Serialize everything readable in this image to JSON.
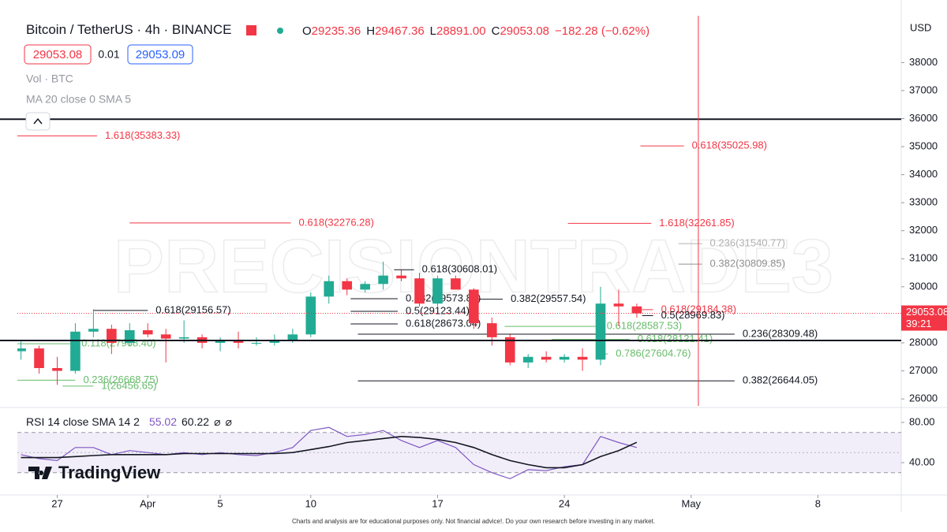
{
  "chart_data": [
    {
      "type": "candlestick",
      "title": "Bitcoin / TetherUS · 4h · BINANCE",
      "legend_values": [
        {
          "prefix": "O",
          "value": "29235.36"
        },
        {
          "prefix": "H",
          "value": "29467.36"
        },
        {
          "prefix": "L",
          "value": "28891.00"
        },
        {
          "prefix": "C",
          "value": "29053.08"
        }
      ],
      "change": "−182.28 (−0.62%)",
      "bid": "29053.08",
      "spread": "0.01",
      "ask": "29053.09",
      "indicators": [
        "Vol · BTC",
        "MA 20 close 0 SMA 5"
      ],
      "watermark": "PRECISIONTRADE3",
      "axis_unit": "USD",
      "up_color": "#22ab94",
      "down_color": "#f23645",
      "x": [
        -2,
        -1,
        0,
        1,
        2,
        3,
        4,
        5,
        6,
        7,
        8,
        9,
        10,
        11,
        12,
        13,
        14,
        15,
        16,
        17,
        18,
        19,
        20,
        21,
        22,
        23,
        24,
        25,
        26,
        27,
        28,
        29,
        30,
        31,
        32
      ],
      "open": [
        27700,
        27800,
        27100,
        27000,
        28400,
        28500,
        28000,
        28450,
        28300,
        28150,
        28200,
        28000,
        28100,
        28000,
        28000,
        28100,
        28300,
        29650,
        30200,
        29900,
        30100,
        30400,
        30300,
        29400,
        30300,
        29900,
        28700,
        28200,
        27300,
        27500,
        27400,
        27500,
        27400,
        29400,
        29300
      ],
      "high": [
        28100,
        27900,
        27500,
        28700,
        29200,
        28650,
        28700,
        28700,
        28500,
        28800,
        28300,
        28200,
        28400,
        28200,
        28300,
        28500,
        29800,
        30400,
        30300,
        30200,
        30900,
        30600,
        30500,
        30400,
        30400,
        29950,
        28900,
        28300,
        27600,
        27700,
        27600,
        27800,
        30000,
        29900,
        29400
      ],
      "low": [
        27400,
        26900,
        26500,
        26900,
        28200,
        27600,
        27900,
        28200,
        27300,
        28000,
        27800,
        27700,
        27800,
        27900,
        27900,
        28000,
        28200,
        29400,
        29700,
        29800,
        29900,
        30200,
        29300,
        29300,
        29900,
        28500,
        27900,
        27200,
        27100,
        27300,
        27300,
        27000,
        27200,
        28600,
        28900
      ],
      "close": [
        27800,
        27100,
        27000,
        28400,
        28500,
        28000,
        28450,
        28300,
        28150,
        28200,
        28000,
        28100,
        28000,
        28000,
        28100,
        28300,
        29650,
        30200,
        29900,
        30100,
        30400,
        30300,
        29400,
        30300,
        29900,
        28700,
        28200,
        27300,
        27500,
        27400,
        27500,
        27400,
        29400,
        29300,
        29053.08
      ],
      "xlim": [
        -2.2,
        46.6
      ],
      "xticks": [
        {
          "value": 0,
          "label": "27"
        },
        {
          "value": 5,
          "label": "Apr"
        },
        {
          "value": 9,
          "label": "5"
        },
        {
          "value": 14,
          "label": "10"
        },
        {
          "value": 21,
          "label": "17"
        },
        {
          "value": 28,
          "label": "24"
        },
        {
          "value": 35,
          "label": "May"
        },
        {
          "value": 42,
          "label": "8"
        }
      ],
      "ylim": [
        25750,
        39670
      ],
      "yticks": [
        26000,
        27000,
        28000,
        29000,
        30000,
        31000,
        32000,
        33000,
        34000,
        35000,
        36000,
        37000,
        38000
      ],
      "hlines": [
        {
          "value": 35980,
          "color": "#131722"
        },
        {
          "value": 28085,
          "color": "#131722"
        }
      ],
      "vline": {
        "x": 35.4,
        "color": "#f23645"
      },
      "last_price": {
        "value": 29053.08,
        "label": "29053.08",
        "countdown": "39:21",
        "color": "#f23645"
      },
      "levels": [
        {
          "label": "1.618(35383.33)",
          "value": 35383.33,
          "color": "#f23645",
          "x": [
            -2.2,
            2.2
          ]
        },
        {
          "label": "0.618(35025.98)",
          "value": 35025.98,
          "color": "#f23645",
          "x": [
            32.2,
            34.6
          ]
        },
        {
          "label": "0.618(32276.28)",
          "value": 32276.28,
          "color": "#f23645",
          "x": [
            4.0,
            12.9
          ]
        },
        {
          "label": "1.618(32261.85)",
          "value": 32261.85,
          "color": "#f23645",
          "x": [
            28.2,
            32.8
          ]
        },
        {
          "label": "0.236(31540.77)",
          "value": 31540.77,
          "color": "#b0b0b0",
          "x": [
            34.3,
            35.6
          ]
        },
        {
          "label": "0.382(30809.85)",
          "value": 30809.85,
          "color": "#909090",
          "x": [
            34.3,
            35.6
          ]
        },
        {
          "label": "0.618(30608.01)",
          "value": 30608.01,
          "color": "#131722",
          "x": [
            18.6,
            19.7
          ]
        },
        {
          "label": "0.382(29573.84)",
          "value": 29573.84,
          "color": "#131722",
          "x": [
            16.2,
            18.8
          ]
        },
        {
          "label": "0.382(29557.54)",
          "value": 29557.54,
          "color": "#131722",
          "x": [
            23.2,
            24.6
          ]
        },
        {
          "label": "0.618(29184.38)",
          "value": 29184.38,
          "color": "#f23645",
          "x": [
            32.3,
            32.9
          ]
        },
        {
          "label": "0.618(29156.57)",
          "value": 29156.57,
          "color": "#131722",
          "x": [
            2.0,
            5.0
          ]
        },
        {
          "label": "0.5(29123.44)",
          "value": 29123.44,
          "color": "#131722",
          "x": [
            16.2,
            18.8
          ]
        },
        {
          "label": "0.5(28969.83)",
          "value": 28969.83,
          "color": "#131722",
          "x": [
            32.3,
            32.9
          ]
        },
        {
          "label": "0.618(28673.04)",
          "value": 28673.04,
          "color": "#131722",
          "x": [
            16.2,
            18.8
          ]
        },
        {
          "label": "0.618(28587.53)",
          "value": 28587.53,
          "color": "#66bb6a",
          "x": [
            24.7,
            29.9
          ]
        },
        {
          "label": "0.236(28309.48)",
          "value": 28309.48,
          "color": "#131722",
          "x": [
            16.6,
            37.4
          ]
        },
        {
          "label": "0.618(28121.41)",
          "value": 28121.41,
          "color": "#66bb6a",
          "x": [
            27.3,
            31.6
          ]
        },
        {
          "label": "0.118(27968.40)",
          "value": 27968.4,
          "color": "#66bb6a",
          "x": [
            -2.2,
            0.9
          ]
        },
        {
          "label": "0.786(27604.76)",
          "value": 27604.76,
          "color": "#66bb6a",
          "x": [
            29.9,
            30.4
          ]
        },
        {
          "label": "0.236(26668.75)",
          "value": 26668.75,
          "color": "#66bb6a",
          "x": [
            -2.2,
            1.0
          ]
        },
        {
          "label": "0.382(26644.05)",
          "value": 26644.05,
          "color": "#131722",
          "x": [
            16.6,
            37.4
          ]
        },
        {
          "label": "1(26456.65)",
          "value": 26456.65,
          "color": "#66bb6a",
          "x": [
            0.3,
            2.0
          ]
        }
      ],
      "footer": "Charts and analysis are for educational purposes only. Not financial advice!. Do your own research before investing in any market.",
      "logo": "TradingView"
    },
    {
      "type": "line",
      "title": "RSI 14 close SMA 14 2",
      "readouts": [
        "55.02",
        "60.22",
        "⌀",
        "⌀"
      ],
      "x": [
        -2,
        -1,
        0,
        1,
        2,
        3,
        4,
        5,
        6,
        7,
        8,
        9,
        10,
        11,
        12,
        13,
        14,
        15,
        16,
        17,
        18,
        19,
        20,
        21,
        22,
        23,
        24,
        25,
        26,
        27,
        28,
        29,
        30,
        31,
        32
      ],
      "series": [
        {
          "name": "RSI",
          "color": "#7e57c2",
          "values": [
            48,
            44,
            42,
            55,
            55,
            48,
            52,
            50,
            48,
            50,
            48,
            50,
            48,
            47,
            50,
            55,
            72,
            75,
            66,
            68,
            72,
            62,
            55,
            62,
            55,
            38,
            30,
            24,
            33,
            32,
            36,
            38,
            66,
            60,
            55.02
          ]
        },
        {
          "name": "SMA",
          "color": "#131722",
          "values": [
            45,
            45,
            45,
            46,
            47,
            48,
            48,
            48,
            48,
            49,
            49,
            49,
            49,
            49,
            49,
            50,
            53,
            56,
            60,
            62,
            64,
            66,
            65,
            63,
            60,
            55,
            48,
            42,
            38,
            35,
            35,
            38,
            46,
            52,
            60.22
          ]
        }
      ],
      "band": [
        30,
        70
      ],
      "midline": 50,
      "ylim": [
        10.2,
        92.5
      ],
      "yticks": [
        {
          "value": 40,
          "label": "40.00"
        },
        {
          "value": 80,
          "label": "80.00"
        }
      ]
    }
  ]
}
